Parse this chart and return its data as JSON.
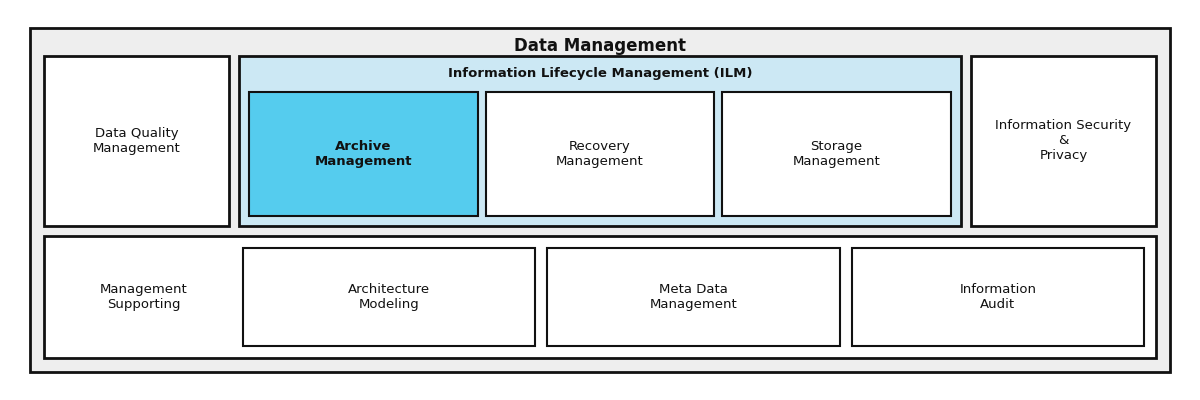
{
  "title": "Data Management",
  "outer_box_color": "#eeeeee",
  "outer_box_edge": "#111111",
  "white_box_color": "#ffffff",
  "ilm_box_color": "#cce8f4",
  "archive_box_color": "#55ccee",
  "title_fontsize": 12,
  "label_fontsize": 9.5,
  "fig_bg": "#ffffff",
  "top_row": {
    "data_quality": {
      "label": "Data Quality\nManagement"
    },
    "ilm": {
      "title": "Information Lifecycle Management (ILM)",
      "children": [
        {
          "label": "Archive\nManagement",
          "bold": true,
          "color": "#55ccee"
        },
        {
          "label": "Recovery\nManagement",
          "bold": false,
          "color": "#ffffff"
        },
        {
          "label": "Storage\nManagement",
          "bold": false,
          "color": "#ffffff"
        }
      ]
    },
    "info_security": {
      "label": "Information Security\n&\nPrivacy"
    }
  },
  "bottom_row": {
    "children": [
      {
        "label": "Management\nSupporting",
        "has_border": false
      },
      {
        "label": "Architecture\nModeling",
        "has_border": true
      },
      {
        "label": "Meta Data\nManagement",
        "has_border": true
      },
      {
        "label": "Information\nAudit",
        "has_border": true
      }
    ]
  }
}
